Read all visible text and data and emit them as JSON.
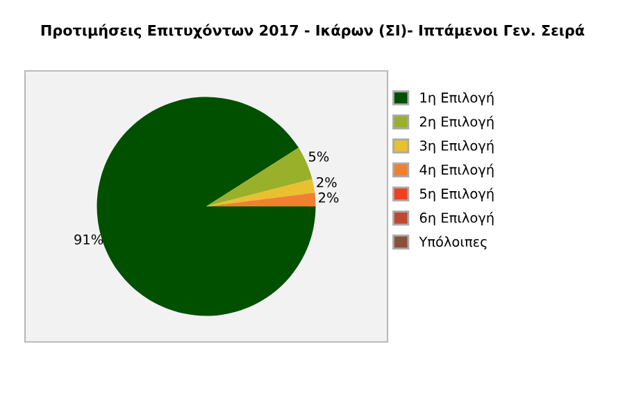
{
  "chart_data": {
    "type": "pie",
    "title": "Προτιμήσεις Επιτυχόντων 2017 - Ικάρων (ΣΙ)- Ιπτάμενοι Γεν. Σειρά",
    "categories": [
      "1η Επιλογή",
      "2η Επιλογή",
      "3η Επιλογή",
      "4η Επιλογή",
      "5η Επιλογή",
      "6η Επιλογή",
      "Υπόλοιπες"
    ],
    "values": [
      91,
      5,
      2,
      2,
      0,
      0,
      0
    ],
    "value_labels": [
      "91%",
      "5%",
      "2%",
      "2%",
      null,
      null,
      null
    ],
    "colors": [
      "#005000",
      "#99b02a",
      "#e8c030",
      "#f08030",
      "#f04020",
      "#c04830",
      "#8b5038"
    ],
    "legend": "right"
  }
}
